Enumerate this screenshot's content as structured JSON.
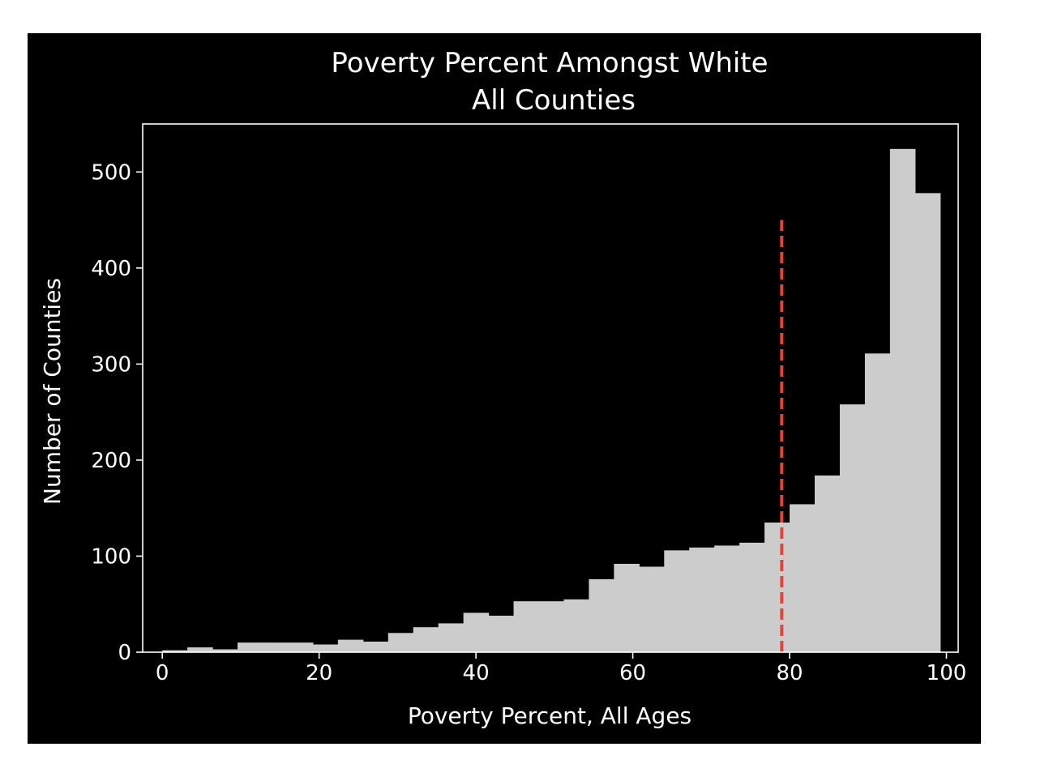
{
  "colors": {
    "figure_background": "#000000",
    "axes_background": "#000000",
    "bar_fill": "#cccccc",
    "axes_edge": "#ffffff",
    "text": "#ffffff",
    "reference_line": "#e8413a"
  },
  "chart_data": {
    "type": "bar",
    "subtype": "histogram",
    "title": "Poverty Percent Amongst White\nAll Counties",
    "title_lines": [
      "Poverty Percent Amongst White",
      "All Counties"
    ],
    "xlabel": "Poverty Percent, All Ages",
    "ylabel": "Number of Counties",
    "xlim": [
      -2.5,
      101.5
    ],
    "ylim": [
      0,
      550
    ],
    "xticks": [
      0,
      20,
      40,
      60,
      80,
      100
    ],
    "yticks": [
      0,
      100,
      200,
      300,
      400,
      500
    ],
    "grid": false,
    "legend": null,
    "bin_edges": [
      0.0,
      3.2,
      6.4,
      9.6,
      12.8,
      16.0,
      19.2,
      22.4,
      25.6,
      28.8,
      32.0,
      35.2,
      38.4,
      41.6,
      44.8,
      48.0,
      51.2,
      54.4,
      57.6,
      60.8,
      64.0,
      67.2,
      70.4,
      73.6,
      76.8,
      80.0,
      83.2,
      86.4,
      89.6,
      92.8,
      96.0,
      99.2
    ],
    "values": [
      2,
      5,
      3,
      10,
      10,
      10,
      8,
      13,
      11,
      20,
      26,
      30,
      41,
      38,
      53,
      53,
      55,
      76,
      92,
      89,
      106,
      109,
      111,
      114,
      135,
      154,
      184,
      258,
      311,
      524,
      478
    ],
    "reference_line": {
      "orientation": "vertical",
      "x": 79,
      "y_range": [
        0,
        450
      ],
      "style": "dashed"
    }
  }
}
